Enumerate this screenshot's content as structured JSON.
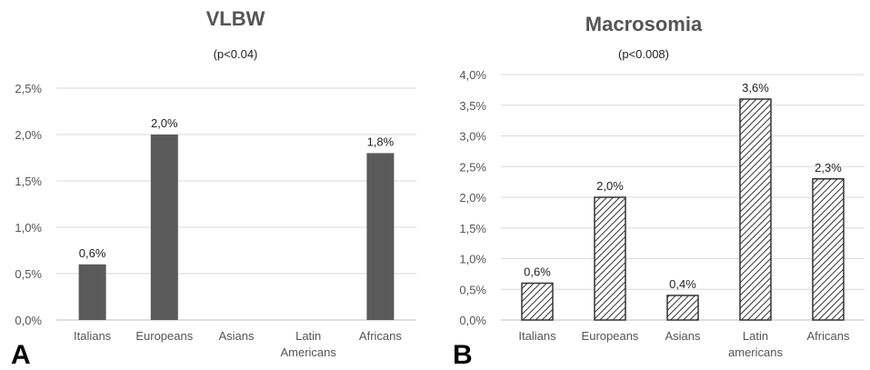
{
  "chart_data": [
    {
      "type": "bar",
      "panel": "A",
      "title": "VLBW",
      "subtitle": "(p<0.04)",
      "categories": [
        "Italians",
        "Europeans",
        "Asians",
        "Latin Americans",
        "Africans"
      ],
      "category_lines": [
        [
          "Italians"
        ],
        [
          "Europeans"
        ],
        [
          "Asians"
        ],
        [
          "Latin",
          "Americans"
        ],
        [
          "Africans"
        ]
      ],
      "values": [
        0.6,
        2.0,
        null,
        null,
        1.8
      ],
      "data_labels": [
        "0,6%",
        "2,0%",
        "",
        "",
        "1,8%"
      ],
      "ylim": [
        0,
        2.5
      ],
      "yticks": [
        0,
        0.5,
        1.0,
        1.5,
        2.0,
        2.5
      ],
      "ytick_labels": [
        "0,0%",
        "0,5%",
        "1,0%",
        "1,5%",
        "2,0%",
        "2,5%"
      ],
      "bar_style": "solid",
      "bar_color": "#5a5a5a",
      "grid": true
    },
    {
      "type": "bar",
      "panel": "B",
      "title": "Macrosomia",
      "subtitle": "(p<0.008)",
      "categories": [
        "Italians",
        "Europeans",
        "Asians",
        "Latin americans",
        "Africans"
      ],
      "category_lines": [
        [
          "Italians"
        ],
        [
          "Europeans"
        ],
        [
          "Asians"
        ],
        [
          "Latin",
          "americans"
        ],
        [
          "Africans"
        ]
      ],
      "values": [
        0.6,
        2.0,
        0.4,
        3.6,
        2.3
      ],
      "data_labels": [
        "0,6%",
        "2,0%",
        "0,4%",
        "3,6%",
        "2,3%"
      ],
      "ylim": [
        0,
        4.0
      ],
      "yticks": [
        0,
        0.5,
        1.0,
        1.5,
        2.0,
        2.5,
        3.0,
        3.5,
        4.0
      ],
      "ytick_labels": [
        "0,0%",
        "0,5%",
        "1,0%",
        "1,5%",
        "2,0%",
        "2,5%",
        "3,0%",
        "3,5%",
        "4,0%"
      ],
      "bar_style": "hatched",
      "bar_color": "#333333",
      "grid": true
    }
  ]
}
